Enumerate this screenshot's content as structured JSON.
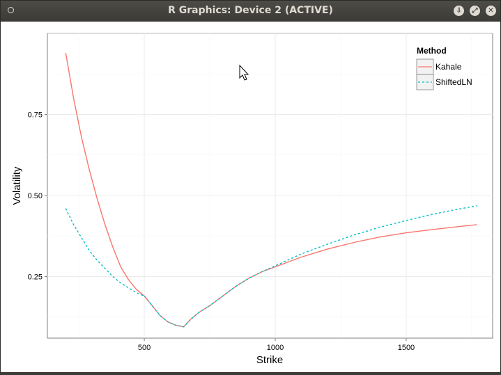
{
  "window": {
    "title": "R Graphics: Device 2 (ACTIVE)",
    "buttons": {
      "minimize": "minimize",
      "maximize": "maximize",
      "close": "close"
    }
  },
  "chart_data": {
    "type": "line",
    "title": "",
    "xlabel": "Strike",
    "ylabel": "Volatility",
    "xlim": [
      130,
      1830
    ],
    "ylim": [
      0.06,
      1.0
    ],
    "xticks": [
      500,
      1000,
      1500
    ],
    "yticks": [
      0.25,
      0.5,
      0.75
    ],
    "xtick_labels": [
      "500",
      "1000",
      "1500"
    ],
    "ytick_labels": [
      "0.25",
      "0.50",
      "0.75"
    ],
    "grid": true,
    "legend": {
      "title": "Method",
      "position": "top-right"
    },
    "series": [
      {
        "name": "Kahale",
        "color": "#F8766D",
        "dash": "solid",
        "x": [
          200,
          230,
          260,
          290,
          320,
          350,
          380,
          410,
          440,
          470,
          500,
          530,
          560,
          590,
          620,
          650,
          680,
          710,
          750,
          800,
          850,
          900,
          950,
          1000,
          1100,
          1200,
          1300,
          1400,
          1500,
          1600,
          1700,
          1770
        ],
        "y": [
          0.94,
          0.8,
          0.68,
          0.58,
          0.49,
          0.41,
          0.34,
          0.28,
          0.24,
          0.21,
          0.19,
          0.16,
          0.13,
          0.11,
          0.1,
          0.095,
          0.12,
          0.14,
          0.16,
          0.19,
          0.22,
          0.245,
          0.265,
          0.28,
          0.31,
          0.335,
          0.355,
          0.372,
          0.385,
          0.395,
          0.404,
          0.41
        ]
      },
      {
        "name": "ShiftedLN",
        "color": "#00BFC4",
        "dash": "dashed",
        "x": [
          200,
          230,
          260,
          290,
          320,
          350,
          380,
          410,
          440,
          470,
          500,
          530,
          560,
          590,
          620,
          650,
          680,
          710,
          750,
          800,
          850,
          900,
          950,
          1000,
          1100,
          1200,
          1300,
          1400,
          1500,
          1600,
          1700,
          1770
        ],
        "y": [
          0.46,
          0.41,
          0.37,
          0.33,
          0.3,
          0.275,
          0.25,
          0.23,
          0.215,
          0.2,
          0.19,
          0.16,
          0.13,
          0.11,
          0.1,
          0.095,
          0.12,
          0.14,
          0.16,
          0.19,
          0.22,
          0.245,
          0.265,
          0.283,
          0.32,
          0.35,
          0.378,
          0.402,
          0.423,
          0.442,
          0.458,
          0.468
        ]
      }
    ]
  }
}
